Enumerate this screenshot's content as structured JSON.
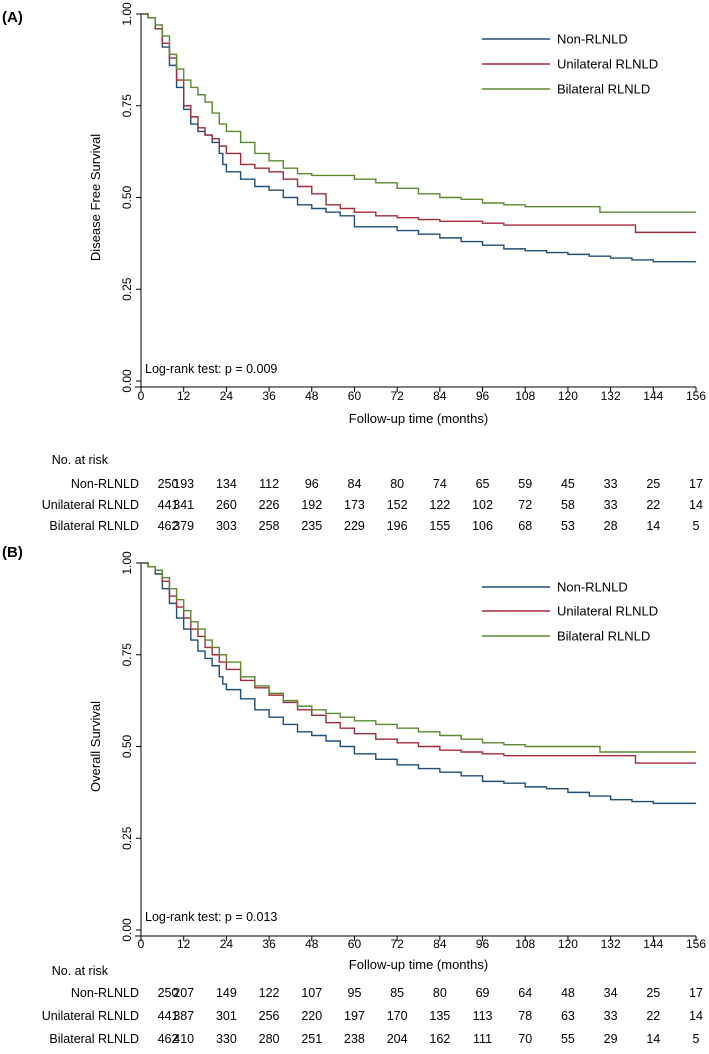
{
  "chart_data": [
    {
      "type": "line",
      "panel_label": "(A)",
      "ylabel": "Disease Free Survival",
      "xlabel": "Follow-up time (months)",
      "xlim": [
        0,
        156
      ],
      "ylim": [
        0,
        1
      ],
      "x_ticks": [
        "0",
        "12",
        "24",
        "36",
        "48",
        "60",
        "72",
        "84",
        "96",
        "108",
        "120",
        "132",
        "144",
        "156"
      ],
      "y_ticks": [
        "0.00",
        "0.25",
        "0.50",
        "0.75",
        "1.00"
      ],
      "annotation": "Log-rank test: p = 0.009",
      "legend": [
        "Non-RLNLD",
        "Unilateral RLNLD",
        "Bilateral RLNLD"
      ],
      "series": [
        {
          "name": "Non-RLNLD",
          "color": "#1f4e79",
          "points": [
            [
              0,
              1
            ],
            [
              2,
              0.99
            ],
            [
              4,
              0.96
            ],
            [
              6,
              0.91
            ],
            [
              8,
              0.86
            ],
            [
              10,
              0.8
            ],
            [
              12,
              0.74
            ],
            [
              14,
              0.7
            ],
            [
              16,
              0.68
            ],
            [
              18,
              0.67
            ],
            [
              20,
              0.65
            ],
            [
              22,
              0.62
            ],
            [
              23,
              0.59
            ],
            [
              24,
              0.57
            ],
            [
              28,
              0.55
            ],
            [
              32,
              0.53
            ],
            [
              36,
              0.52
            ],
            [
              40,
              0.5
            ],
            [
              44,
              0.48
            ],
            [
              48,
              0.47
            ],
            [
              52,
              0.46
            ],
            [
              56,
              0.45
            ],
            [
              60,
              0.42
            ],
            [
              66,
              0.42
            ],
            [
              72,
              0.41
            ],
            [
              78,
              0.4
            ],
            [
              84,
              0.39
            ],
            [
              90,
              0.38
            ],
            [
              96,
              0.37
            ],
            [
              102,
              0.36
            ],
            [
              108,
              0.355
            ],
            [
              114,
              0.35
            ],
            [
              120,
              0.345
            ],
            [
              126,
              0.34
            ],
            [
              132,
              0.335
            ],
            [
              138,
              0.33
            ],
            [
              144,
              0.325
            ],
            [
              156,
              0.325
            ]
          ]
        },
        {
          "name": "Unilateral RLNLD",
          "color": "#a52a3a",
          "points": [
            [
              0,
              1
            ],
            [
              2,
              0.99
            ],
            [
              4,
              0.96
            ],
            [
              6,
              0.92
            ],
            [
              8,
              0.88
            ],
            [
              10,
              0.82
            ],
            [
              12,
              0.75
            ],
            [
              14,
              0.72
            ],
            [
              16,
              0.69
            ],
            [
              18,
              0.67
            ],
            [
              20,
              0.66
            ],
            [
              22,
              0.64
            ],
            [
              24,
              0.62
            ],
            [
              28,
              0.59
            ],
            [
              32,
              0.58
            ],
            [
              36,
              0.57
            ],
            [
              40,
              0.55
            ],
            [
              44,
              0.53
            ],
            [
              48,
              0.51
            ],
            [
              52,
              0.48
            ],
            [
              56,
              0.47
            ],
            [
              60,
              0.46
            ],
            [
              66,
              0.45
            ],
            [
              72,
              0.445
            ],
            [
              78,
              0.44
            ],
            [
              84,
              0.435
            ],
            [
              90,
              0.435
            ],
            [
              96,
              0.43
            ],
            [
              102,
              0.425
            ],
            [
              108,
              0.425
            ],
            [
              120,
              0.425
            ],
            [
              132,
              0.425
            ],
            [
              138,
              0.425
            ],
            [
              139,
              0.405
            ],
            [
              156,
              0.405
            ]
          ]
        },
        {
          "name": "Bilateral RLNLD",
          "color": "#5b8a2e",
          "points": [
            [
              0,
              1
            ],
            [
              2,
              0.99
            ],
            [
              4,
              0.97
            ],
            [
              6,
              0.94
            ],
            [
              8,
              0.89
            ],
            [
              10,
              0.85
            ],
            [
              12,
              0.82
            ],
            [
              14,
              0.8
            ],
            [
              16,
              0.78
            ],
            [
              18,
              0.76
            ],
            [
              20,
              0.73
            ],
            [
              22,
              0.7
            ],
            [
              24,
              0.68
            ],
            [
              28,
              0.65
            ],
            [
              32,
              0.62
            ],
            [
              36,
              0.6
            ],
            [
              40,
              0.58
            ],
            [
              44,
              0.565
            ],
            [
              48,
              0.56
            ],
            [
              54,
              0.56
            ],
            [
              60,
              0.55
            ],
            [
              66,
              0.54
            ],
            [
              72,
              0.525
            ],
            [
              78,
              0.51
            ],
            [
              84,
              0.5
            ],
            [
              90,
              0.495
            ],
            [
              96,
              0.485
            ],
            [
              102,
              0.48
            ],
            [
              108,
              0.475
            ],
            [
              120,
              0.475
            ],
            [
              128,
              0.475
            ],
            [
              129,
              0.46
            ],
            [
              156,
              0.46
            ]
          ]
        }
      ],
      "risk_table": {
        "title": "No. at risk",
        "rows": [
          {
            "label": "Non-RLNLD",
            "values": [
              "250",
              "193",
              "134",
              "112",
              "96",
              "84",
              "80",
              "74",
              "65",
              "59",
              "45",
              "33",
              "25",
              "17"
            ]
          },
          {
            "label": "Unilateral RLNLD",
            "values": [
              "441",
              "341",
              "260",
              "226",
              "192",
              "173",
              "152",
              "122",
              "102",
              "72",
              "58",
              "33",
              "22",
              "14"
            ]
          },
          {
            "label": "Bilateral RLNLD",
            "values": [
              "462",
              "379",
              "303",
              "258",
              "235",
              "229",
              "196",
              "155",
              "106",
              "68",
              "53",
              "28",
              "14",
              "5"
            ]
          }
        ]
      }
    },
    {
      "type": "line",
      "panel_label": "(B)",
      "ylabel": "Overall Survival",
      "xlabel": "Follow-up time (months)",
      "xlim": [
        0,
        156
      ],
      "ylim": [
        0,
        1
      ],
      "x_ticks": [
        "0",
        "12",
        "24",
        "36",
        "48",
        "60",
        "72",
        "84",
        "96",
        "108",
        "120",
        "132",
        "144",
        "156"
      ],
      "y_ticks": [
        "0.00",
        "0.25",
        "0.50",
        "0.75",
        "1.00"
      ],
      "annotation": "Log-rank test: p = 0.013",
      "legend": [
        "Non-RLNLD",
        "Unilateral RLNLD",
        "Bilateral RLNLD"
      ],
      "series": [
        {
          "name": "Non-RLNLD",
          "color": "#1f4e79",
          "points": [
            [
              0,
              1
            ],
            [
              2,
              0.99
            ],
            [
              4,
              0.97
            ],
            [
              6,
              0.93
            ],
            [
              8,
              0.89
            ],
            [
              10,
              0.85
            ],
            [
              12,
              0.82
            ],
            [
              14,
              0.79
            ],
            [
              16,
              0.76
            ],
            [
              18,
              0.74
            ],
            [
              20,
              0.72
            ],
            [
              22,
              0.69
            ],
            [
              23,
              0.67
            ],
            [
              24,
              0.655
            ],
            [
              28,
              0.63
            ],
            [
              32,
              0.6
            ],
            [
              36,
              0.58
            ],
            [
              40,
              0.56
            ],
            [
              44,
              0.54
            ],
            [
              48,
              0.53
            ],
            [
              52,
              0.515
            ],
            [
              56,
              0.5
            ],
            [
              60,
              0.48
            ],
            [
              66,
              0.465
            ],
            [
              72,
              0.45
            ],
            [
              78,
              0.44
            ],
            [
              84,
              0.43
            ],
            [
              90,
              0.42
            ],
            [
              96,
              0.405
            ],
            [
              102,
              0.4
            ],
            [
              108,
              0.39
            ],
            [
              114,
              0.385
            ],
            [
              120,
              0.375
            ],
            [
              126,
              0.365
            ],
            [
              132,
              0.355
            ],
            [
              138,
              0.35
            ],
            [
              144,
              0.345
            ],
            [
              156,
              0.345
            ]
          ]
        },
        {
          "name": "Unilateral RLNLD",
          "color": "#a52a3a",
          "points": [
            [
              0,
              1
            ],
            [
              2,
              0.99
            ],
            [
              4,
              0.98
            ],
            [
              6,
              0.95
            ],
            [
              8,
              0.91
            ],
            [
              10,
              0.88
            ],
            [
              12,
              0.85
            ],
            [
              14,
              0.82
            ],
            [
              16,
              0.8
            ],
            [
              18,
              0.77
            ],
            [
              20,
              0.75
            ],
            [
              22,
              0.73
            ],
            [
              24,
              0.71
            ],
            [
              28,
              0.68
            ],
            [
              32,
              0.66
            ],
            [
              36,
              0.64
            ],
            [
              40,
              0.62
            ],
            [
              44,
              0.6
            ],
            [
              48,
              0.585
            ],
            [
              52,
              0.565
            ],
            [
              56,
              0.55
            ],
            [
              60,
              0.535
            ],
            [
              66,
              0.52
            ],
            [
              72,
              0.51
            ],
            [
              78,
              0.5
            ],
            [
              84,
              0.49
            ],
            [
              90,
              0.485
            ],
            [
              96,
              0.48
            ],
            [
              102,
              0.475
            ],
            [
              108,
              0.475
            ],
            [
              120,
              0.475
            ],
            [
              138,
              0.475
            ],
            [
              139,
              0.455
            ],
            [
              156,
              0.455
            ]
          ]
        },
        {
          "name": "Bilateral RLNLD",
          "color": "#5b8a2e",
          "points": [
            [
              0,
              1
            ],
            [
              2,
              0.99
            ],
            [
              4,
              0.98
            ],
            [
              6,
              0.96
            ],
            [
              8,
              0.93
            ],
            [
              10,
              0.9
            ],
            [
              12,
              0.87
            ],
            [
              14,
              0.84
            ],
            [
              16,
              0.82
            ],
            [
              18,
              0.79
            ],
            [
              20,
              0.77
            ],
            [
              22,
              0.75
            ],
            [
              24,
              0.73
            ],
            [
              28,
              0.69
            ],
            [
              32,
              0.665
            ],
            [
              36,
              0.645
            ],
            [
              40,
              0.625
            ],
            [
              44,
              0.61
            ],
            [
              48,
              0.6
            ],
            [
              52,
              0.59
            ],
            [
              56,
              0.58
            ],
            [
              60,
              0.57
            ],
            [
              66,
              0.56
            ],
            [
              72,
              0.55
            ],
            [
              78,
              0.54
            ],
            [
              84,
              0.53
            ],
            [
              90,
              0.52
            ],
            [
              96,
              0.51
            ],
            [
              102,
              0.505
            ],
            [
              108,
              0.5
            ],
            [
              120,
              0.5
            ],
            [
              128,
              0.5
            ],
            [
              129,
              0.485
            ],
            [
              156,
              0.485
            ]
          ]
        }
      ],
      "risk_table": {
        "title": "No. at risk",
        "rows": [
          {
            "label": "Non-RLNLD",
            "values": [
              "250",
              "207",
              "149",
              "122",
              "107",
              "95",
              "85",
              "80",
              "69",
              "64",
              "48",
              "34",
              "25",
              "17"
            ]
          },
          {
            "label": "Unilateral RLNLD",
            "values": [
              "441",
              "387",
              "301",
              "256",
              "220",
              "197",
              "170",
              "135",
              "113",
              "78",
              "63",
              "33",
              "22",
              "14"
            ]
          },
          {
            "label": "Bilateral RLNLD",
            "values": [
              "462",
              "410",
              "330",
              "280",
              "251",
              "238",
              "204",
              "162",
              "111",
              "70",
              "55",
              "29",
              "14",
              "5"
            ]
          }
        ]
      }
    }
  ]
}
